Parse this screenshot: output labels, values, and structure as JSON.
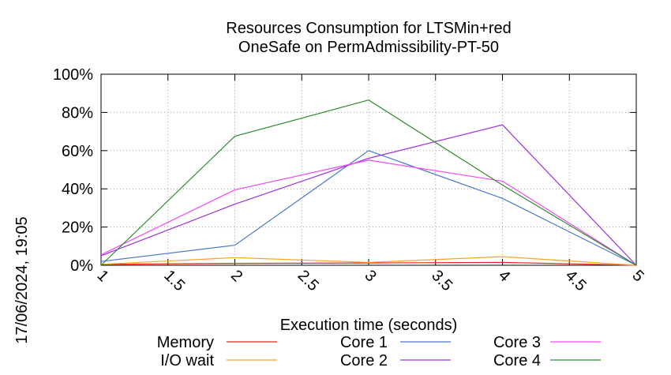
{
  "chart_data": {
    "type": "line",
    "title": "Resources Consumption for LTSMin+red",
    "subtitle": "OneSafe on PermAdmissibility-PT-50",
    "xlabel": "Execution time (seconds)",
    "ylabel": "",
    "timestamp": "17/06/2024, 19:05",
    "xlim": [
      1,
      5
    ],
    "ylim": [
      0,
      100
    ],
    "x_ticks": [
      "1",
      "1.5",
      "2",
      "2.5",
      "3",
      "3.5",
      "4",
      "4.5",
      "5"
    ],
    "y_ticks": [
      "0%",
      "20%",
      "40%",
      "60%",
      "80%",
      "100%"
    ],
    "grid": true,
    "legend_position": "bottom",
    "x": [
      1,
      2,
      3,
      4,
      5
    ],
    "series": [
      {
        "name": "Memory",
        "color": "#e8261b",
        "values": [
          0.5,
          1.0,
          1.2,
          1.5,
          0
        ]
      },
      {
        "name": "I/O wait",
        "color": "#f5a623",
        "values": [
          0.5,
          4.0,
          1.5,
          4.5,
          0
        ]
      },
      {
        "name": "Core 1",
        "color": "#4a78c8",
        "values": [
          2.0,
          10.5,
          60.0,
          35.0,
          0
        ]
      },
      {
        "name": "Core 2",
        "color": "#9b30e0",
        "values": [
          5.0,
          32.0,
          56.0,
          73.5,
          0
        ]
      },
      {
        "name": "Core 3",
        "color": "#f24af2",
        "values": [
          5.5,
          39.5,
          55.0,
          44.0,
          0
        ]
      },
      {
        "name": "Core 4",
        "color": "#2e8b2e",
        "values": [
          0.0,
          67.5,
          86.5,
          42.0,
          0
        ]
      }
    ]
  }
}
